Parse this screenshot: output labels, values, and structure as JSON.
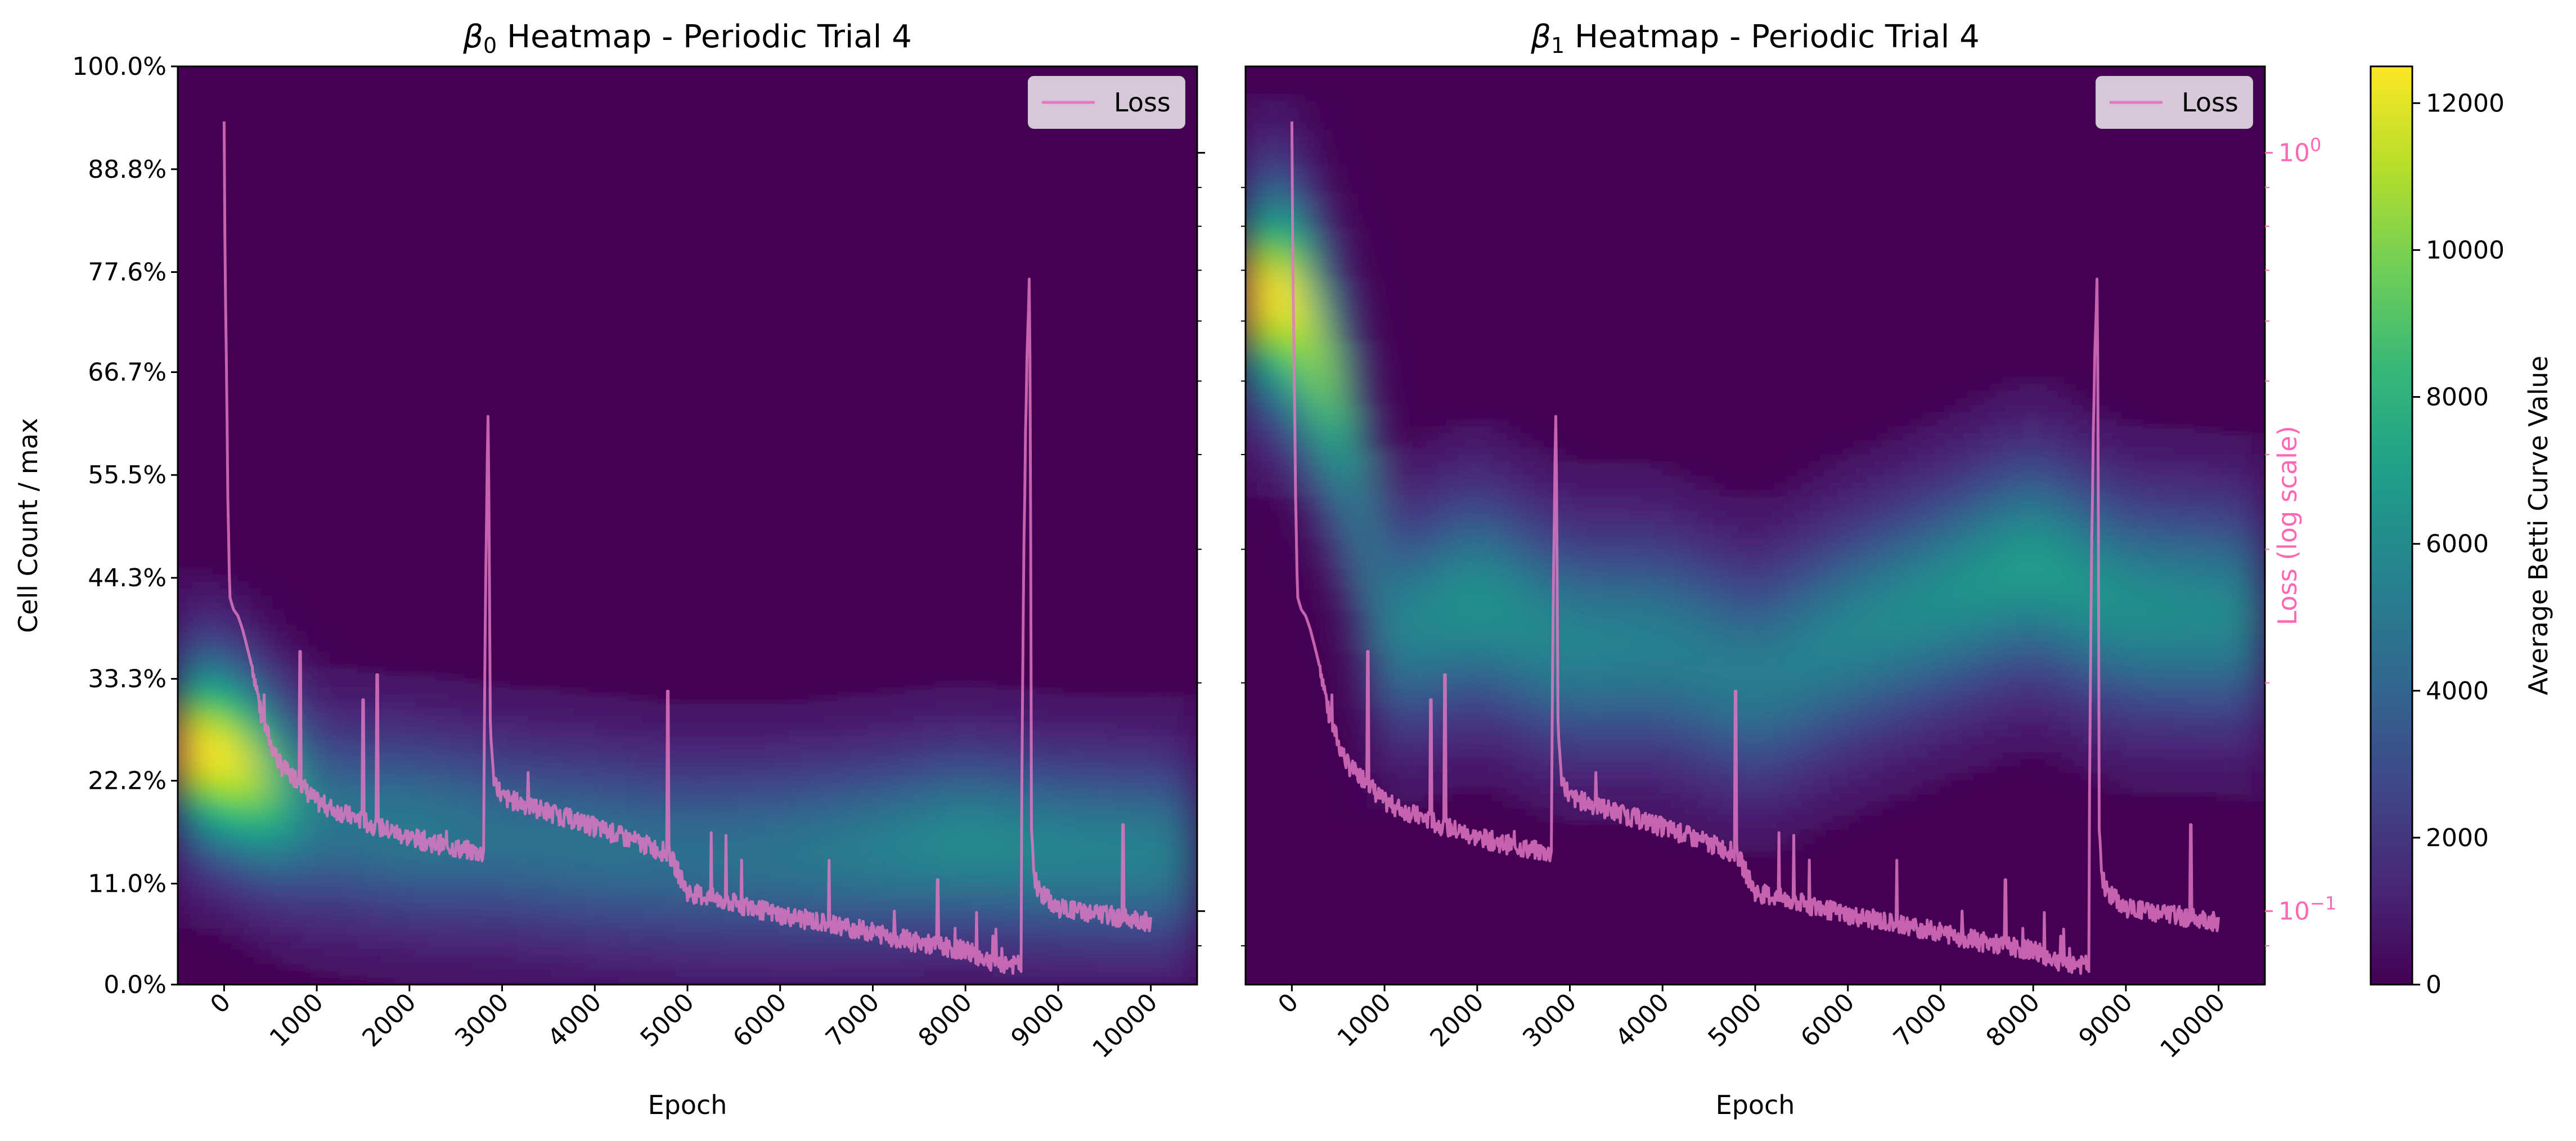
{
  "colors": {
    "loss": "#e377c2",
    "loss_axis_text": "#ff69b4",
    "background": "#440154",
    "viridis": [
      "#440154",
      "#482878",
      "#3e4989",
      "#31688e",
      "#26828e",
      "#1f9e89",
      "#35b779",
      "#6ece58",
      "#b5de2b",
      "#fde725"
    ]
  },
  "chart_data": [
    {
      "type": "heatmap",
      "title_prefix": "β",
      "title_sub": "0",
      "title_suffix": " Heatmap - Periodic Trial 4",
      "xlabel": "Epoch",
      "ylabel": "Cell Count / max",
      "xlim": [
        -500,
        10500
      ],
      "ylim": [
        0,
        100
      ],
      "xticks": [
        0,
        1000,
        2000,
        3000,
        4000,
        5000,
        6000,
        7000,
        8000,
        9000,
        10000
      ],
      "xticklabels": [
        "0",
        "1000",
        "2000",
        "3000",
        "4000",
        "5000",
        "6000",
        "7000",
        "8000",
        "9000",
        "10000"
      ],
      "yticks": [
        0,
        11.0,
        22.2,
        33.3,
        44.3,
        55.5,
        66.7,
        77.6,
        88.8,
        100.0
      ],
      "yticklabels": [
        "0.0%",
        "11.0%",
        "22.2%",
        "33.3%",
        "44.3%",
        "55.5%",
        "66.7%",
        "77.6%",
        "88.8%",
        "100.0%"
      ],
      "legend": [
        "Loss"
      ],
      "legend_position": "top-right",
      "band_centers_pct": [
        [
          -500,
          26
        ],
        [
          0,
          25
        ],
        [
          400,
          22
        ],
        [
          1000,
          18
        ],
        [
          2000,
          17
        ],
        [
          3000,
          16
        ],
        [
          4000,
          15
        ],
        [
          5000,
          14
        ],
        [
          6000,
          14
        ],
        [
          7000,
          14.5
        ],
        [
          8000,
          15.5
        ],
        [
          9000,
          14.5
        ],
        [
          10500,
          14
        ]
      ],
      "band_values": [
        [
          -500,
          12000
        ],
        [
          0,
          12000
        ],
        [
          300,
          11000
        ],
        [
          600,
          7500
        ],
        [
          1000,
          4300
        ],
        [
          2000,
          4700
        ],
        [
          3000,
          4200
        ],
        [
          4000,
          4300
        ],
        [
          5000,
          4100
        ],
        [
          6000,
          4400
        ],
        [
          7000,
          4900
        ],
        [
          8000,
          5600
        ],
        [
          9000,
          5200
        ],
        [
          10500,
          5000
        ]
      ],
      "band_sigma_pct": 7
    },
    {
      "type": "heatmap",
      "title_prefix": "β",
      "title_sub": "1",
      "title_suffix": " Heatmap - Periodic Trial 4",
      "xlabel": "Epoch",
      "ylabel_right": "Loss (log scale)",
      "xlim": [
        -500,
        10500
      ],
      "ylim_loss": [
        0.08,
        1.3
      ],
      "xticks": [
        0,
        1000,
        2000,
        3000,
        4000,
        5000,
        6000,
        7000,
        8000,
        9000,
        10000
      ],
      "xticklabels": [
        "0",
        "1000",
        "2000",
        "3000",
        "4000",
        "5000",
        "6000",
        "7000",
        "8000",
        "9000",
        "10000"
      ],
      "yticks_right": [
        0.1,
        1.0
      ],
      "yticklabels_right": [
        {
          "base": "10",
          "exp": "−1"
        },
        {
          "base": "10",
          "exp": "0"
        }
      ],
      "legend": [
        "Loss"
      ],
      "legend_position": "top-right",
      "band_centers_pct": [
        [
          -500,
          75
        ],
        [
          0,
          75
        ],
        [
          600,
          60
        ],
        [
          1000,
          38
        ],
        [
          2000,
          42
        ],
        [
          3000,
          37
        ],
        [
          4000,
          37
        ],
        [
          5000,
          33
        ],
        [
          6000,
          38
        ],
        [
          7000,
          42
        ],
        [
          8000,
          46
        ],
        [
          9000,
          41
        ],
        [
          10500,
          40
        ]
      ],
      "band_values": [
        [
          -500,
          12000
        ],
        [
          0,
          12000
        ],
        [
          400,
          10000
        ],
        [
          700,
          6000
        ],
        [
          1000,
          5000
        ],
        [
          2000,
          6000
        ],
        [
          3000,
          5200
        ],
        [
          4000,
          5000
        ],
        [
          5000,
          4800
        ],
        [
          6000,
          5300
        ],
        [
          7000,
          5800
        ],
        [
          8000,
          6500
        ],
        [
          9000,
          5800
        ],
        [
          10500,
          5400
        ]
      ],
      "band_sigma_pct": 8
    }
  ],
  "loss_series": {
    "name": "Loss",
    "scale": "log",
    "x": [
      0,
      10,
      40,
      60,
      100,
      150,
      200,
      300,
      400,
      500,
      600,
      700,
      800,
      900,
      1000,
      1500,
      2000,
      2500,
      2800,
      2850,
      2870,
      2900,
      3000,
      4000,
      4800,
      5000,
      6000,
      7000,
      7500,
      8000,
      8300,
      8600,
      8690,
      8710,
      8740,
      8800,
      9000,
      9500,
      10000
    ],
    "y": [
      1.1,
      0.7,
      0.35,
      0.26,
      0.25,
      0.245,
      0.235,
      0.21,
      0.18,
      0.165,
      0.155,
      0.15,
      0.148,
      0.142,
      0.138,
      0.13,
      0.124,
      0.12,
      0.118,
      0.45,
      0.18,
      0.15,
      0.14,
      0.128,
      0.118,
      0.105,
      0.098,
      0.093,
      0.09,
      0.088,
      0.085,
      0.084,
      0.7,
      0.13,
      0.11,
      0.105,
      0.1,
      0.098,
      0.096
    ],
    "spikes": [
      [
        820,
        0.22
      ],
      [
        1500,
        0.19
      ],
      [
        1650,
        0.205
      ],
      [
        4790,
        0.195
      ],
      [
        7700,
        0.11
      ],
      [
        9700,
        0.13
      ]
    ]
  },
  "colorbar": {
    "label": "Average Betti Curve Value",
    "range": [
      0,
      12500
    ],
    "ticks": [
      0,
      2000,
      4000,
      6000,
      8000,
      10000,
      12000
    ],
    "ticklabels": [
      "0",
      "2000",
      "4000",
      "6000",
      "8000",
      "10000",
      "12000"
    ]
  }
}
